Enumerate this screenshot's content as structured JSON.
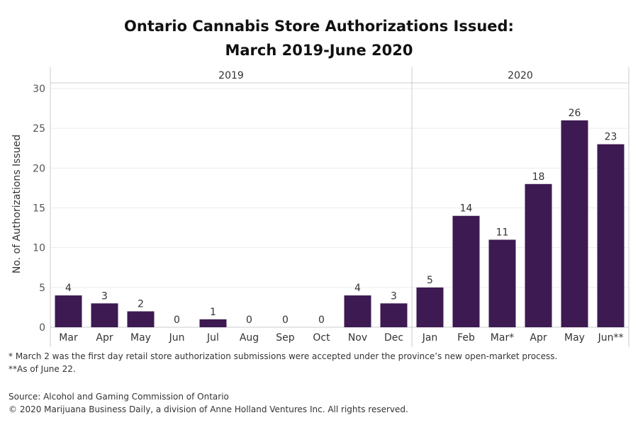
{
  "chart_data": {
    "type": "bar",
    "title_line1": "Ontario Cannabis Store Authorizations Issued:",
    "title_line2": "March 2019-June 2020",
    "ylabel": "No. of Authorizations Issued",
    "xlabel": "",
    "ylim": [
      0,
      30
    ],
    "yticks": [
      "0",
      "5",
      "10",
      "15",
      "20",
      "25",
      "30"
    ],
    "grid": true,
    "bar_color": "#3d1a52",
    "panels": [
      {
        "label": "2019",
        "categories": [
          "Mar",
          "Apr",
          "May",
          "Jun",
          "Jul",
          "Aug",
          "Sep",
          "Oct",
          "Nov",
          "Dec"
        ],
        "values": [
          4,
          3,
          2,
          0,
          1,
          0,
          0,
          0,
          4,
          3
        ]
      },
      {
        "label": "2020",
        "categories": [
          "Jan",
          "Feb",
          "Mar*",
          "Apr",
          "May",
          "Jun**"
        ],
        "values": [
          5,
          14,
          11,
          18,
          26,
          23
        ]
      }
    ]
  },
  "footnotes": {
    "march": "* March 2 was the first day retail store authorization submissions were accepted under the province’s new open-market process.",
    "june": "**As of June 22."
  },
  "source": "Source: Alcohol and Gaming Commission of Ontario",
  "copyright": "© 2020 Marijuana Business Daily, a division of Anne Holland Ventures Inc. All rights reserved."
}
